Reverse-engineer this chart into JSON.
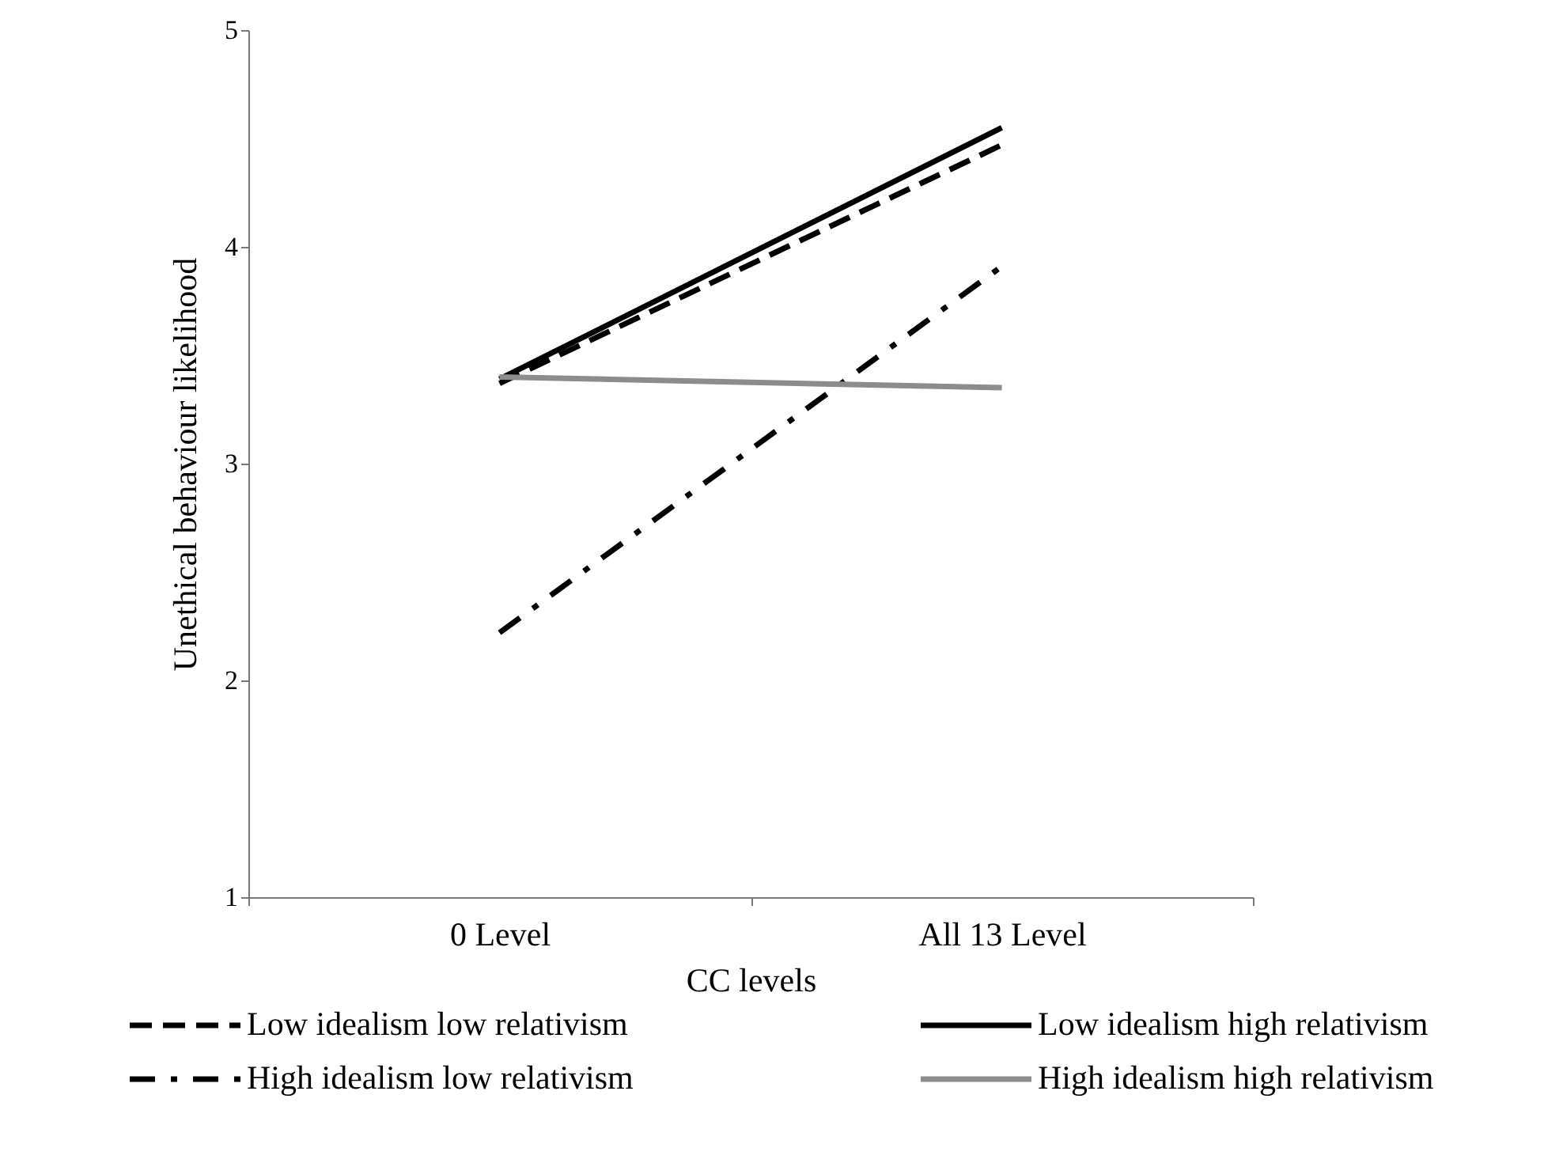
{
  "chart_data": {
    "type": "line",
    "xlabel": "CC levels",
    "ylabel": "Unethical behaviour likelihood",
    "categories": [
      "0 Level",
      "All 13 Level"
    ],
    "series": [
      {
        "name": "Low idealism low relativism",
        "color": "#000000",
        "line_style": "dashed",
        "values": [
          3.37,
          4.47
        ]
      },
      {
        "name": "Low idealism high relativism",
        "color": "#000000",
        "line_style": "solid",
        "values": [
          3.39,
          4.55
        ]
      },
      {
        "name": "High idealism low relativism",
        "color": "#000000",
        "line_style": "dotted",
        "values": [
          2.22,
          3.91
        ]
      },
      {
        "name": "High idealism high relativism",
        "color": "#8c8c8c",
        "line_style": "solid",
        "values": [
          3.4,
          3.35
        ]
      }
    ],
    "ylim": [
      1,
      5
    ],
    "yticks": [
      1,
      2,
      3,
      4,
      5
    ],
    "grid": false,
    "legend": "bottom",
    "marker": "none"
  }
}
